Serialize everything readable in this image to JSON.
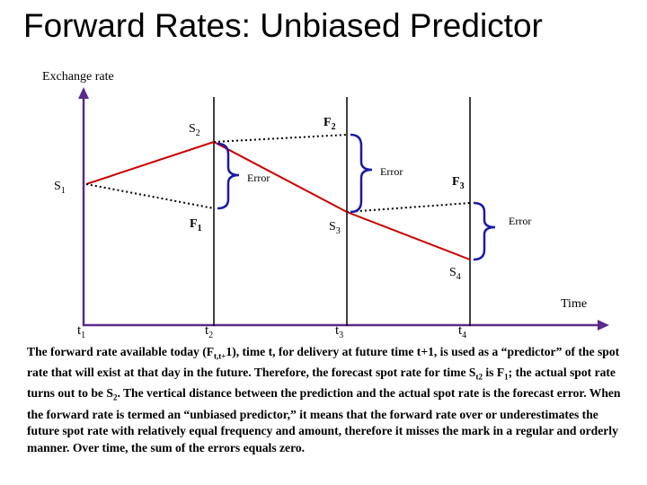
{
  "title": "Forward Rates: Unbiased Predictor",
  "axes": {
    "y_label": "Exchange rate",
    "x_label": "Time"
  },
  "time_labels": [
    {
      "main": "t",
      "sub": "1"
    },
    {
      "main": "t",
      "sub": "2"
    },
    {
      "main": "t",
      "sub": "3"
    },
    {
      "main": "t",
      "sub": "4"
    }
  ],
  "points": {
    "s1": {
      "main": "S",
      "sub": "1"
    },
    "s2": {
      "main": "S",
      "sub": "2"
    },
    "s3": {
      "main": "S",
      "sub": "3"
    },
    "s4": {
      "main": "S",
      "sub": "4"
    },
    "f1": {
      "main": "F",
      "sub": "1"
    },
    "f2": {
      "main": "F",
      "sub": "2"
    },
    "f3": {
      "main": "F",
      "sub": "3"
    }
  },
  "error_label": "Error",
  "colors": {
    "line": "#000000",
    "axis": "#5b2a8c",
    "bracket": "#1a1aa6"
  },
  "caption": {
    "part1": "The forward rate available today (F",
    "part1_sub": "t,t+",
    "part2": "1), time t, for delivery at future time t+1, is used as a “predictor” of the spot rate that will exist at that day in the future. Therefore, the forecast spot rate for time S",
    "part2_sub": "t2",
    "part3": " is F",
    "part3_sub": "1",
    "part4": "; the actual spot rate turns out to be S",
    "part4_sub": "2",
    "part5": ". The vertical distance between the prediction and the actual spot rate is the forecast error. When the forward rate is termed an “unbiased predictor,” it means that the forward rate over or underestimates the future spot rate with relatively equal frequency and amount, therefore it misses the mark in a regular and orderly manner. Over time, the sum of the errors equals zero."
  }
}
